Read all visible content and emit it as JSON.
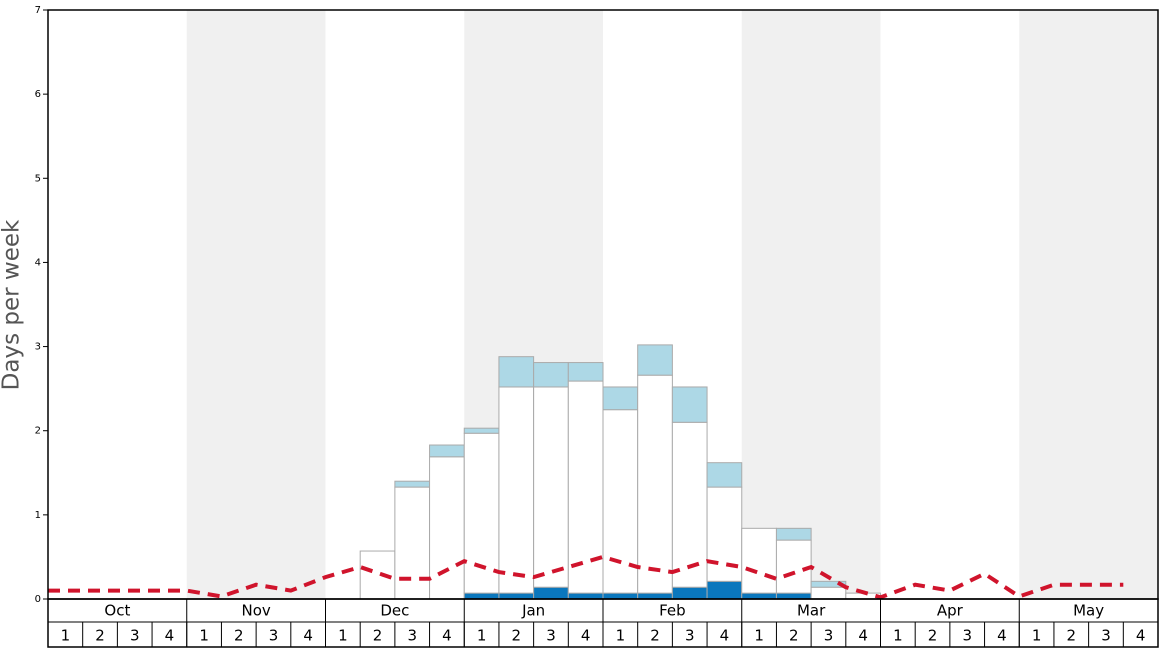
{
  "chart_data": {
    "type": "bar",
    "y_label": "Days per week",
    "months": [
      "Oct",
      "Nov",
      "Dec",
      "Jan",
      "Feb",
      "Mar",
      "Apr",
      "May"
    ],
    "categories": [
      "1",
      "2",
      "3",
      "4",
      "1",
      "2",
      "3",
      "4",
      "1",
      "2",
      "3",
      "4",
      "1",
      "2",
      "3",
      "4",
      "1",
      "2",
      "3",
      "4",
      "1",
      "2",
      "3",
      "4",
      "1",
      "2",
      "3",
      "4",
      "1",
      "2",
      "3",
      "4"
    ],
    "series": [
      {
        "color": "#0a77bd",
        "values": [
          0,
          0,
          0,
          0,
          0,
          0,
          0,
          0,
          0,
          0,
          0,
          0,
          0.07,
          0.07,
          0.14,
          0.07,
          0.07,
          0.07,
          0.14,
          0.21,
          0.07,
          0.07,
          0,
          0,
          0,
          0,
          0,
          0,
          0,
          0,
          0,
          0
        ]
      },
      {
        "color": "#ffffff",
        "values": [
          0,
          0,
          0,
          0,
          0,
          0,
          0,
          0,
          0,
          0.57,
          1.33,
          1.69,
          1.9,
          2.45,
          2.38,
          2.52,
          2.18,
          2.59,
          1.96,
          1.12,
          0.77,
          0.63,
          0.14,
          0.07,
          0,
          0,
          0,
          0,
          0,
          0,
          0,
          0
        ]
      },
      {
        "color": "#add8e6",
        "values": [
          0,
          0,
          0,
          0,
          0,
          0,
          0,
          0,
          0,
          0,
          0.07,
          0.14,
          0.06,
          0.36,
          0.29,
          0.22,
          0.27,
          0.36,
          0.42,
          0.29,
          0,
          0.14,
          0.07,
          0,
          0,
          0,
          0,
          0,
          0,
          0,
          0,
          0
        ]
      }
    ],
    "line": {
      "type": "line",
      "color": "#d0142c",
      "values": [
        0.1,
        0.1,
        0.1,
        0.1,
        0.1,
        0.03,
        0.17,
        0.1,
        0.26,
        0.38,
        0.24,
        0.24,
        0.45,
        0.32,
        0.26,
        0.38,
        0.5,
        0.38,
        0.32,
        0.45,
        0.38,
        0.24,
        0.38,
        0.14,
        0.02,
        0.17,
        0.1,
        0.3,
        0.03,
        0.17,
        0.17,
        0.17
      ]
    },
    "ylim": [
      0,
      7
    ],
    "yticks": [
      0,
      1,
      2,
      3,
      4,
      5,
      6,
      7
    ]
  }
}
